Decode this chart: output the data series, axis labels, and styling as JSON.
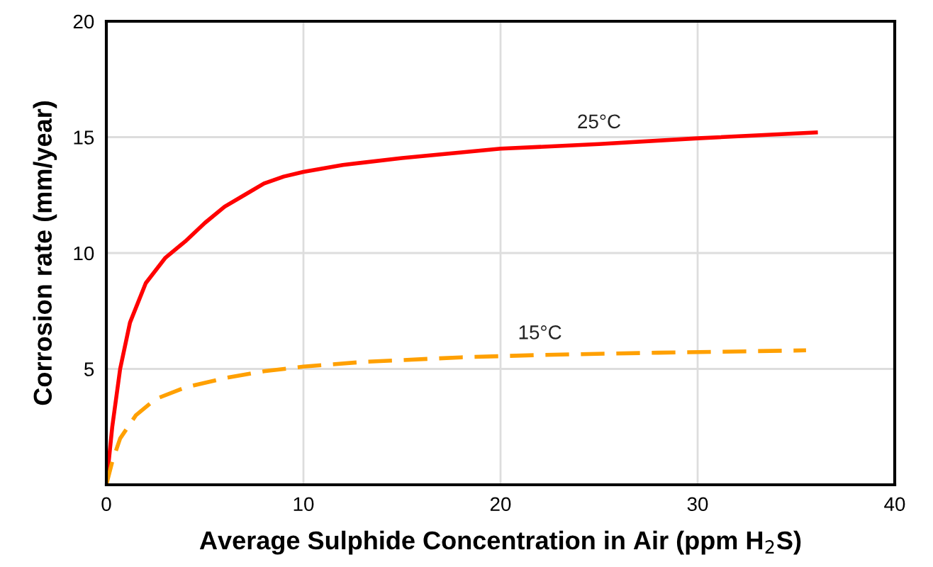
{
  "chart_data": {
    "type": "line",
    "xlabel": "Average Sulphide Concentration in Air (ppm H$_{2}$S)",
    "ylabel": "Corrosion rate (mm/year)",
    "xlim": [
      0,
      40
    ],
    "xticks": [
      0,
      10,
      20,
      30,
      40
    ],
    "ylim": [
      0,
      20
    ],
    "yticks": [
      5,
      10,
      15,
      20
    ],
    "grid": true,
    "legend": false,
    "marker": "none",
    "series": [
      {
        "name": "25°C",
        "color": "#ff0000",
        "line_style": "solid",
        "x": [
          0,
          0.3,
          0.7,
          1.2,
          2,
          3,
          4,
          5,
          6,
          7,
          8,
          9,
          10,
          12,
          15,
          20,
          25,
          30,
          36
        ],
        "values": [
          0,
          2.5,
          5,
          7,
          8.7,
          9.8,
          10.5,
          11.3,
          12,
          12.5,
          13,
          13.3,
          13.5,
          13.8,
          14.1,
          14.5,
          14.7,
          14.95,
          15.2
        ]
      },
      {
        "name": "15°C",
        "color": "#ffa000",
        "line_style": "dashed",
        "x": [
          0,
          0.3,
          0.7,
          1.5,
          2.5,
          4,
          6,
          8,
          10,
          13,
          18,
          22,
          28,
          35.5
        ],
        "values": [
          0,
          1,
          2,
          3,
          3.7,
          4.2,
          4.6,
          4.9,
          5.1,
          5.3,
          5.5,
          5.6,
          5.7,
          5.8
        ]
      }
    ]
  }
}
